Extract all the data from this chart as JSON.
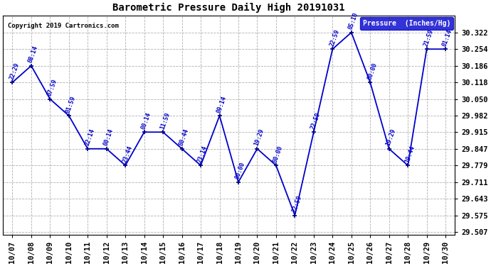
{
  "title": "Barometric Pressure Daily High 20191031",
  "copyright": "Copyright 2019 Cartronics.com",
  "xlabels": [
    "10/07",
    "10/08",
    "10/09",
    "10/10",
    "10/11",
    "10/12",
    "10/13",
    "10/14",
    "10/15",
    "10/16",
    "10/17",
    "10/18",
    "10/19",
    "10/20",
    "10/21",
    "10/22",
    "10/23",
    "10/24",
    "10/25",
    "10/26",
    "10/27",
    "10/28",
    "10/29",
    "10/30"
  ],
  "x_values": [
    0,
    1,
    2,
    3,
    4,
    5,
    6,
    7,
    8,
    9,
    10,
    11,
    12,
    13,
    14,
    15,
    16,
    17,
    18,
    19,
    20,
    21,
    22,
    23
  ],
  "y_values": [
    30.118,
    30.186,
    30.05,
    29.982,
    29.847,
    29.847,
    29.779,
    29.915,
    29.915,
    29.847,
    29.779,
    29.982,
    29.711,
    29.847,
    29.779,
    29.575,
    29.915,
    30.254,
    30.322,
    30.118,
    29.847,
    29.779,
    30.254,
    30.254
  ],
  "time_labels": [
    "22:29",
    "08:14",
    "07:59",
    "01:59",
    "22:14",
    "00:14",
    "23:44",
    "00:14",
    "11:59",
    "00:44",
    "23:14",
    "09:14",
    "00:00",
    "19:29",
    "00:00",
    "22:59",
    "22:59",
    "22:59",
    "05:10",
    "00:00",
    "19:29",
    "19:44",
    "21:59",
    "01:14"
  ],
  "line_color": "#0000CC",
  "marker_color": "#000080",
  "bg_color": "#ffffff",
  "grid_color": "#b0b0b0",
  "ylim_min": 29.507,
  "ylim_max": 30.39,
  "yticks": [
    29.507,
    29.575,
    29.643,
    29.711,
    29.779,
    29.847,
    29.915,
    29.982,
    30.05,
    30.118,
    30.186,
    30.254,
    30.322
  ],
  "legend_label": "Pressure  (Inches/Hg)",
  "legend_bg": "#0000CC",
  "legend_fg": "#ffffff",
  "figwidth": 6.9,
  "figheight": 3.75,
  "dpi": 100
}
